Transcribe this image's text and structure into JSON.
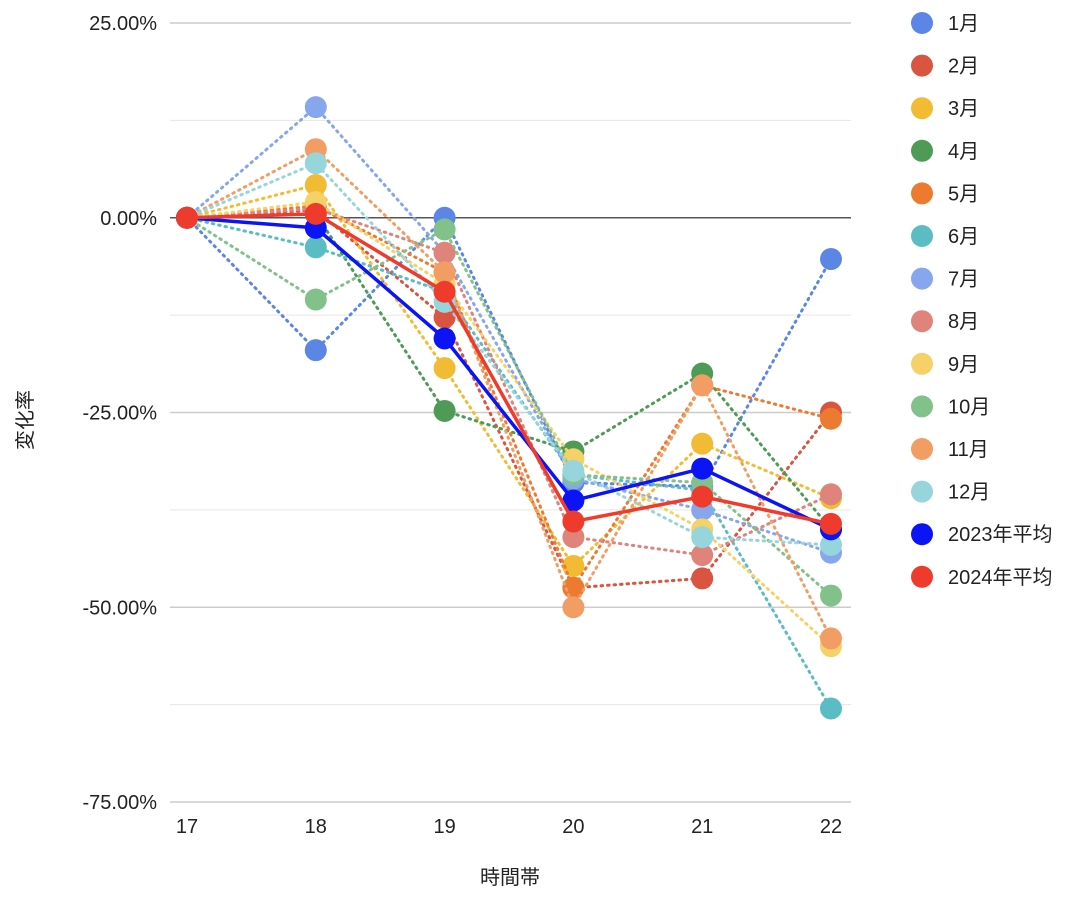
{
  "chart_data": {
    "type": "line",
    "title": "",
    "xlabel": "時間帯",
    "ylabel": "変化率",
    "categories": [
      "17",
      "18",
      "19",
      "20",
      "21",
      "22"
    ],
    "y_ticks": [
      "25.00%",
      "0.00%",
      "-25.00%",
      "-50.00%",
      "-75.00%"
    ],
    "ylim": [
      -75,
      25
    ],
    "y_unit": "%",
    "grid": true,
    "legend_position": "right",
    "series": [
      {
        "name": "1月",
        "color": "#5b86e5",
        "style": "dotted",
        "values": [
          0,
          -17.0,
          0.0,
          -34.0,
          -34.5,
          -5.3
        ]
      },
      {
        "name": "2月",
        "color": "#d95441",
        "style": "dotted",
        "values": [
          0,
          1.0,
          -12.8,
          -47.5,
          -46.3,
          -25.0
        ]
      },
      {
        "name": "3月",
        "color": "#f1bc34",
        "style": "dotted",
        "values": [
          0,
          4.2,
          -19.3,
          -44.7,
          -29.0,
          -36.0
        ]
      },
      {
        "name": "4月",
        "color": "#4e9b55",
        "style": "dotted",
        "values": [
          0,
          0.5,
          -24.8,
          -30.0,
          -20.0,
          -40.0
        ]
      },
      {
        "name": "5月",
        "color": "#ec7a30",
        "style": "dotted",
        "values": [
          0,
          1.5,
          -7.0,
          -47.5,
          -21.5,
          -25.8
        ]
      },
      {
        "name": "6月",
        "color": "#5bbcc4",
        "style": "dotted",
        "values": [
          0,
          -3.8,
          -9.5,
          -33.0,
          -35.0,
          -63.0
        ]
      },
      {
        "name": "7月",
        "color": "#86a6ee",
        "style": "dotted",
        "values": [
          0,
          14.2,
          -4.5,
          -33.5,
          -37.5,
          -43.0
        ]
      },
      {
        "name": "8月",
        "color": "#e0837a",
        "style": "dotted",
        "values": [
          0,
          1.2,
          -4.5,
          -41.0,
          -43.3,
          -35.5
        ]
      },
      {
        "name": "9月",
        "color": "#f5d167",
        "style": "dotted",
        "values": [
          0,
          2.0,
          -8.5,
          -31.0,
          -40.0,
          -55.0
        ]
      },
      {
        "name": "10月",
        "color": "#83c18b",
        "style": "dotted",
        "values": [
          0,
          -10.5,
          -1.5,
          -33.0,
          -34.0,
          -48.5
        ]
      },
      {
        "name": "11月",
        "color": "#f19d63",
        "style": "dotted",
        "values": [
          0,
          8.8,
          -7.0,
          -50.0,
          -21.5,
          -54.0
        ]
      },
      {
        "name": "12月",
        "color": "#95d5db",
        "style": "dotted",
        "values": [
          0,
          7.0,
          -10.8,
          -32.5,
          -41.0,
          -42.0
        ]
      },
      {
        "name": "2023年平均",
        "color": "#0a14f5",
        "style": "solid",
        "values": [
          0,
          -1.3,
          -15.5,
          -36.3,
          -32.2,
          -40.0
        ]
      },
      {
        "name": "2024年平均",
        "color": "#ef3b2c",
        "style": "solid",
        "values": [
          0,
          0.5,
          -9.5,
          -39.0,
          -35.8,
          -39.3
        ]
      }
    ]
  }
}
